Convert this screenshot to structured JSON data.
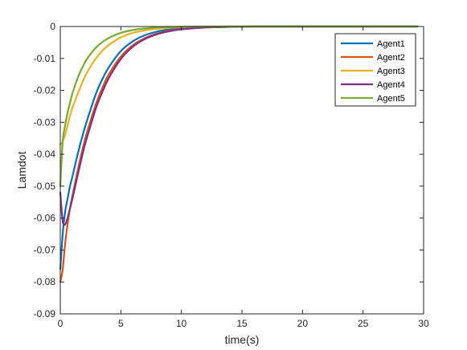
{
  "chart_data": {
    "type": "line",
    "title": "",
    "xlabel": "time(s)",
    "ylabel": "Lamdot",
    "xlim": [
      0,
      30
    ],
    "ylim": [
      -0.09,
      0
    ],
    "xticks": [
      0,
      5,
      10,
      15,
      20,
      25,
      30
    ],
    "xtick_labels": [
      "0",
      "5",
      "10",
      "15",
      "20",
      "25",
      "30"
    ],
    "yticks": [
      0,
      -0.01,
      -0.02,
      -0.03,
      -0.04,
      -0.05,
      -0.06,
      -0.07,
      -0.08,
      -0.09
    ],
    "ytick_labels": [
      "0",
      "-0.01",
      "-0.02",
      "-0.03",
      "-0.04",
      "-0.05",
      "-0.06",
      "-0.07",
      "-0.08",
      "-0.09"
    ],
    "grid": false,
    "legend_position": "top-right",
    "x": [
      0,
      0.2,
      0.4,
      0.6,
      0.8,
      1,
      1.5,
      2,
      2.5,
      3,
      3.5,
      4,
      5,
      6,
      7,
      8,
      9,
      10,
      12,
      14,
      16,
      20,
      25,
      29.5
    ],
    "series": [
      {
        "name": "Agent1",
        "color": "#0072BD",
        "values": [
          -0.076,
          -0.065,
          -0.058,
          -0.054,
          -0.05,
          -0.047,
          -0.039,
          -0.032,
          -0.026,
          -0.0205,
          -0.0163,
          -0.0128,
          -0.0077,
          -0.0046,
          -0.0027,
          -0.0016,
          -0.0009,
          -0.0005,
          -0.0002,
          -0.0001,
          0,
          0,
          0,
          0
        ]
      },
      {
        "name": "Agent2",
        "color": "#D95319",
        "values": [
          -0.08,
          -0.076,
          -0.068,
          -0.062,
          -0.057,
          -0.053,
          -0.044,
          -0.036,
          -0.0295,
          -0.0237,
          -0.019,
          -0.015,
          -0.0094,
          -0.0058,
          -0.0036,
          -0.0022,
          -0.0013,
          -0.0008,
          -0.0003,
          -0.0001,
          0,
          0,
          0,
          0
        ]
      },
      {
        "name": "Agent3",
        "color": "#EDB120",
        "values": [
          -0.037,
          -0.036,
          -0.034,
          -0.031,
          -0.028,
          -0.0255,
          -0.0205,
          -0.016,
          -0.0125,
          -0.0097,
          -0.0075,
          -0.0058,
          -0.0034,
          -0.002,
          -0.0012,
          -0.0007,
          -0.0004,
          -0.0002,
          -0.0001,
          0,
          0,
          0,
          0,
          0
        ]
      },
      {
        "name": "Agent4",
        "color": "#7E2F8E",
        "values": [
          -0.052,
          -0.061,
          -0.062,
          -0.06,
          -0.057,
          -0.054,
          -0.0455,
          -0.0375,
          -0.031,
          -0.025,
          -0.0203,
          -0.0162,
          -0.0102,
          -0.0063,
          -0.0039,
          -0.0024,
          -0.0015,
          -0.0009,
          -0.0003,
          -0.0001,
          0,
          0,
          0,
          0
        ]
      },
      {
        "name": "Agent5",
        "color": "#77AC30",
        "values": [
          -0.05,
          -0.036,
          -0.031,
          -0.027,
          -0.024,
          -0.021,
          -0.0155,
          -0.0115,
          -0.0086,
          -0.0064,
          -0.0048,
          -0.0036,
          -0.002,
          -0.0011,
          -0.0006,
          -0.0003,
          -0.0002,
          -0.0001,
          0,
          0,
          0,
          0,
          0,
          0
        ]
      }
    ]
  }
}
